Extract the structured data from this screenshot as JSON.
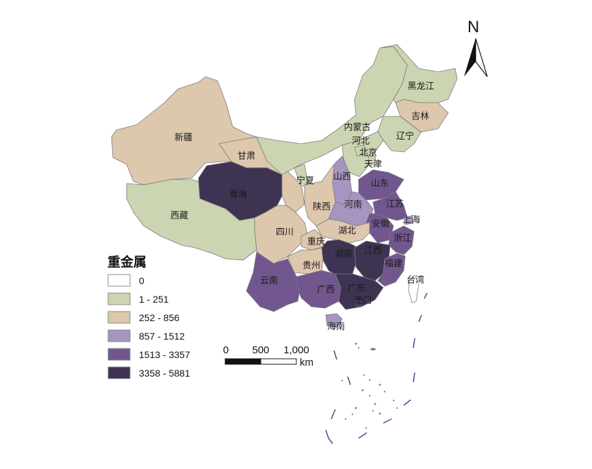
{
  "map": {
    "legend": {
      "title": "重金属",
      "classes": [
        {
          "label": "0",
          "color": "#ffffff"
        },
        {
          "label": "1 - 251",
          "color": "#ccd5b1"
        },
        {
          "label": "252 - 856",
          "color": "#ddc7ad"
        },
        {
          "label": "857 - 1512",
          "color": "#a695c0"
        },
        {
          "label": "1513 - 3357",
          "color": "#72578f"
        },
        {
          "label": "3358 - 5881",
          "color": "#3f3353"
        }
      ]
    },
    "scale_bar": {
      "ticks": [
        "0",
        "500",
        "1,000"
      ],
      "unit": "km"
    },
    "north_arrow": {
      "label": "N"
    },
    "provinces": [
      {
        "name": "新疆",
        "class": 2
      },
      {
        "name": "西藏",
        "class": 1
      },
      {
        "name": "青海",
        "class": 5
      },
      {
        "name": "甘肃",
        "class": 2
      },
      {
        "name": "内蒙古",
        "class": 1
      },
      {
        "name": "黑龙江",
        "class": 1
      },
      {
        "name": "吉林",
        "class": 2
      },
      {
        "name": "辽宁",
        "class": 1
      },
      {
        "name": "河北",
        "class": 1
      },
      {
        "name": "北京",
        "class": 1
      },
      {
        "name": "天津",
        "class": 1
      },
      {
        "name": "宁夏",
        "class": 1
      },
      {
        "name": "山西",
        "class": 3
      },
      {
        "name": "山东",
        "class": 4
      },
      {
        "name": "陕西",
        "class": 2
      },
      {
        "name": "河南",
        "class": 3
      },
      {
        "name": "江苏",
        "class": 4
      },
      {
        "name": "上海",
        "class": 3
      },
      {
        "name": "安徽",
        "class": 4
      },
      {
        "name": "湖北",
        "class": 2
      },
      {
        "name": "四川",
        "class": 2
      },
      {
        "name": "重庆",
        "class": 2
      },
      {
        "name": "浙江",
        "class": 4
      },
      {
        "name": "湖南",
        "class": 5
      },
      {
        "name": "江西",
        "class": 5
      },
      {
        "name": "贵州",
        "class": 2
      },
      {
        "name": "福建",
        "class": 4
      },
      {
        "name": "云南",
        "class": 4
      },
      {
        "name": "广西",
        "class": 4
      },
      {
        "name": "广东",
        "class": 5
      },
      {
        "name": "澳门",
        "class": 5
      },
      {
        "name": "台湾",
        "class": 0
      },
      {
        "name": "海南",
        "class": 3
      }
    ]
  }
}
